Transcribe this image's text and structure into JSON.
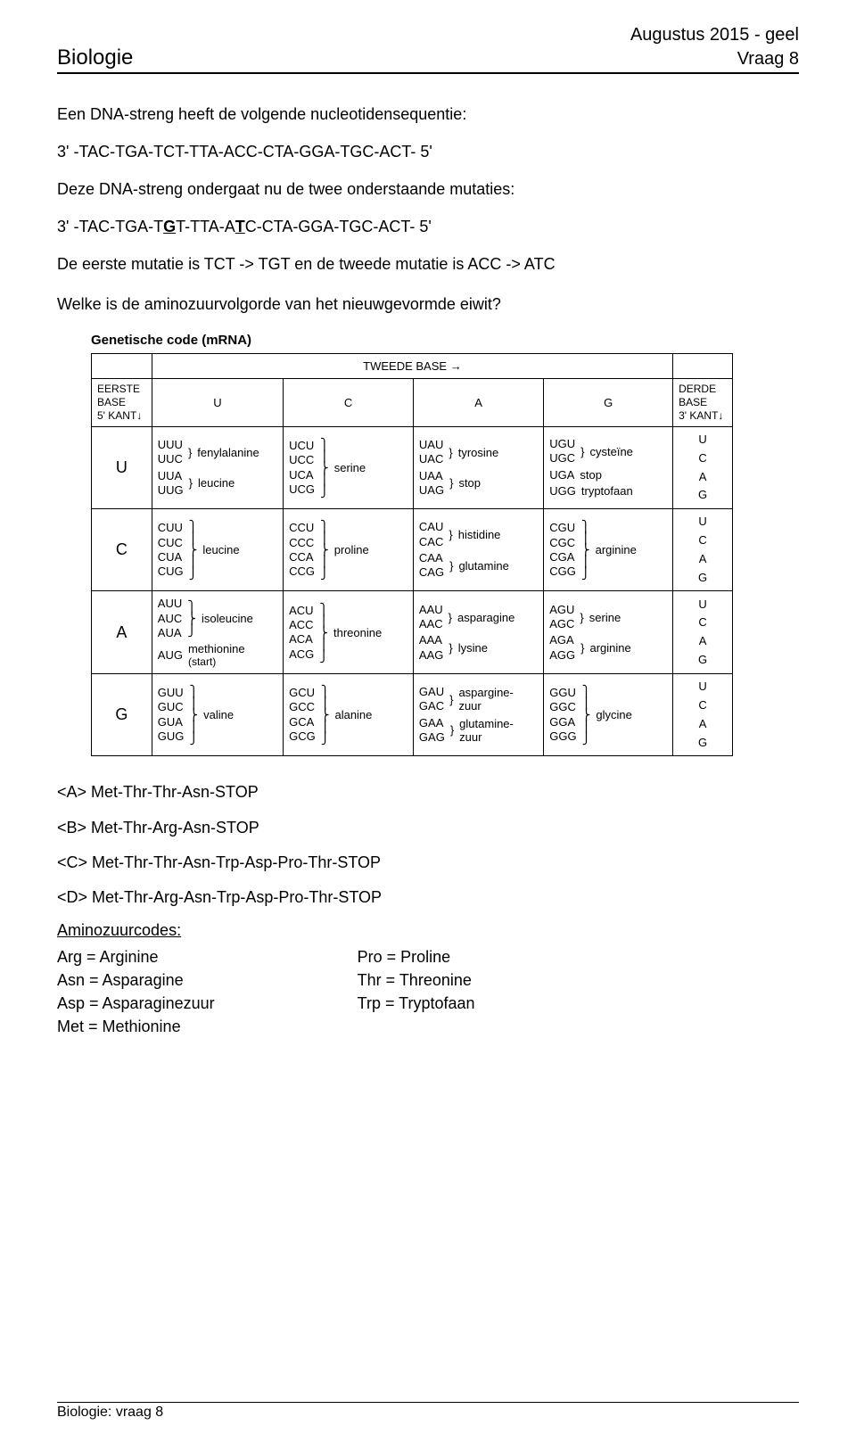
{
  "header": {
    "subject": "Biologie",
    "exam_session": "Augustus 2015 - geel",
    "question_label": "Vraag 8"
  },
  "intro": {
    "line1": "Een DNA-streng heeft de volgende nucleotidensequentie:",
    "seq1_prefix": "3' -TAC-TGA-TCT-TTA-ACC-CTA-GGA-TGC-ACT- 5'",
    "line2": "Deze DNA-streng ondergaat nu de twee onderstaande mutaties:",
    "seq2_pre": "3' -TAC-TGA-T",
    "seq2_mut1": "G",
    "seq2_mid": "T-TTA-A",
    "seq2_mut2": "T",
    "seq2_post": "C-CTA-GGA-TGC-ACT- 5'",
    "line3": "De eerste mutatie is TCT -> TGT en de tweede mutatie is ACC -> ATC",
    "line4": "Welke is de aminozuurvolgorde van het nieuwgevormde eiwit?"
  },
  "codon_table": {
    "title": "Genetische code (mRNA)",
    "second_base_label": "TWEEDE BASE",
    "arrow_right": "→",
    "first_base_label_l1": "EERSTE",
    "first_base_label_l2": "BASE",
    "first_base_label_l3": "5' KANT",
    "arrow_down": "↓",
    "third_base_label_l1": "DERDE",
    "third_base_label_l2": "BASE",
    "third_base_label_l3": "3' KANT",
    "cols": [
      "U",
      "C",
      "A",
      "G"
    ],
    "rows": [
      "U",
      "C",
      "A",
      "G"
    ],
    "third_bases": [
      "U",
      "C",
      "A",
      "G"
    ],
    "cells": {
      "U": {
        "U": [
          {
            "codons": [
              "UUU",
              "UUC"
            ],
            "aa": "fenylalanine"
          },
          {
            "codons": [
              "UUA",
              "UUG"
            ],
            "aa": "leucine"
          }
        ],
        "C": [
          {
            "codons": [
              "UCU",
              "UCC",
              "UCA",
              "UCG"
            ],
            "aa": "serine"
          }
        ],
        "A": [
          {
            "codons": [
              "UAU",
              "UAC"
            ],
            "aa": "tyrosine"
          },
          {
            "codons": [
              "UAA",
              "UAG"
            ],
            "aa": "stop"
          }
        ],
        "G": [
          {
            "codons": [
              "UGU",
              "UGC"
            ],
            "aa": "cysteïne"
          },
          {
            "codons": [
              "UGA"
            ],
            "aa": "stop"
          },
          {
            "codons": [
              "UGG"
            ],
            "aa": "tryptofaan"
          }
        ]
      },
      "C": {
        "U": [
          {
            "codons": [
              "CUU",
              "CUC",
              "CUA",
              "CUG"
            ],
            "aa": "leucine"
          }
        ],
        "C": [
          {
            "codons": [
              "CCU",
              "CCC",
              "CCA",
              "CCG"
            ],
            "aa": "proline"
          }
        ],
        "A": [
          {
            "codons": [
              "CAU",
              "CAC"
            ],
            "aa": "histidine"
          },
          {
            "codons": [
              "CAA",
              "CAG"
            ],
            "aa": "glutamine"
          }
        ],
        "G": [
          {
            "codons": [
              "CGU",
              "CGC",
              "CGA",
              "CGG"
            ],
            "aa": "arginine"
          }
        ]
      },
      "A": {
        "U": [
          {
            "codons": [
              "AUU",
              "AUC",
              "AUA"
            ],
            "aa": "isoleucine"
          },
          {
            "codons": [
              "AUG"
            ],
            "aa": "methionine",
            "note": "(start)"
          }
        ],
        "C": [
          {
            "codons": [
              "ACU",
              "ACC",
              "ACA",
              "ACG"
            ],
            "aa": "threonine"
          }
        ],
        "A": [
          {
            "codons": [
              "AAU",
              "AAC"
            ],
            "aa": "asparagine"
          },
          {
            "codons": [
              "AAA",
              "AAG"
            ],
            "aa": "lysine"
          }
        ],
        "G": [
          {
            "codons": [
              "AGU",
              "AGC"
            ],
            "aa": "serine"
          },
          {
            "codons": [
              "AGA",
              "AGG"
            ],
            "aa": "arginine"
          }
        ]
      },
      "G": {
        "U": [
          {
            "codons": [
              "GUU",
              "GUC",
              "GUA",
              "GUG"
            ],
            "aa": "valine"
          }
        ],
        "C": [
          {
            "codons": [
              "GCU",
              "GCC",
              "GCA",
              "GCG"
            ],
            "aa": "alanine"
          }
        ],
        "A": [
          {
            "codons": [
              "GAU",
              "GAC"
            ],
            "aa": "aspargine-zuur"
          },
          {
            "codons": [
              "GAA",
              "GAG"
            ],
            "aa": "glutamine-zuur"
          }
        ],
        "G": [
          {
            "codons": [
              "GGU",
              "GGC",
              "GGA",
              "GGG"
            ],
            "aa": "glycine"
          }
        ]
      }
    }
  },
  "answers": {
    "A": "<A> Met-Thr-Thr-Asn-STOP",
    "B": "<B> Met-Thr-Arg-Asn-STOP",
    "C": "<C> Met-Thr-Thr-Asn-Trp-Asp-Pro-Thr-STOP",
    "D": "<D> Met-Thr-Arg-Asn-Trp-Asp-Pro-Thr-STOP"
  },
  "amino_codes": {
    "heading": "Aminozuurcodes:",
    "left": [
      "Arg = Arginine",
      "Asn = Asparagine",
      "Asp = Asparaginezuur",
      "Met = Methionine"
    ],
    "right": [
      "Pro = Proline",
      "Thr = Threonine",
      "Trp = Tryptofaan"
    ]
  },
  "footer": "Biologie: vraag 8"
}
